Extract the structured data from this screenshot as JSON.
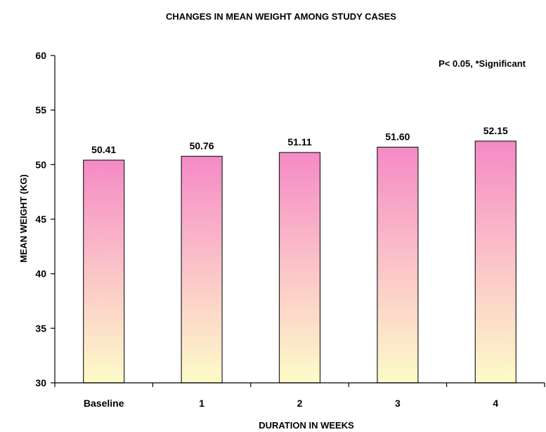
{
  "chart_data": {
    "type": "bar",
    "title": "CHANGES IN MEAN WEIGHT AMONG STUDY CASES",
    "xlabel": "DURATION IN WEEKS",
    "ylabel": "MEAN WEIGHT (KG)",
    "annotation": "P< 0.05, *Significant",
    "categories": [
      "Baseline",
      "1",
      "2",
      "3",
      "4"
    ],
    "values": [
      50.41,
      50.76,
      51.11,
      51.6,
      52.15
    ],
    "data_labels": [
      "50.41",
      "50.76",
      "51.11",
      "51.60",
      "52.15"
    ],
    "ylim": [
      30,
      60
    ],
    "yticks": [
      30,
      35,
      40,
      45,
      50,
      55,
      60
    ],
    "grid": false,
    "bar_fill": {
      "top": "#f58ac6",
      "middle": "#fbc4c8",
      "bottom": "#fdfbc8"
    },
    "bar_stroke": "#222222"
  }
}
